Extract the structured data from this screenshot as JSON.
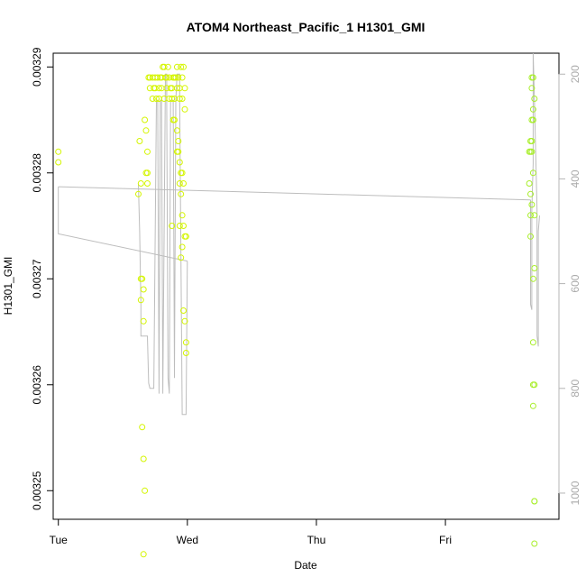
{
  "chart_data": {
    "type": "scatter",
    "title": "ATOM4 Northeast_Pacific_1 H1301_GMI",
    "xlabel": "Date",
    "ylabel": "H1301_GMI",
    "x_ticks": [
      "Tue",
      "Wed",
      "Thu",
      "Fri"
    ],
    "x_unit": "days since Tue 00:00",
    "xlim": [
      -0.04,
      3.88
    ],
    "ylim": [
      0.0032473,
      0.0032913
    ],
    "y_ticks": [
      "0.00325",
      "0.00326",
      "0.00327",
      "0.00328",
      "0.00329"
    ],
    "y_tick_values": [
      0.00325,
      0.00326,
      0.00327,
      0.00328,
      0.00329
    ],
    "y2_label": "",
    "y2_lim": [
      1050,
      160
    ],
    "y2_ticks": [
      "200",
      "400",
      "600",
      "800",
      "1000"
    ],
    "y2_tick_values": [
      200,
      400,
      600,
      800,
      1000
    ],
    "grid": false,
    "colors": {
      "early_points": "#d4f500",
      "late_points": "#a8ee2a",
      "altitude_line": "#bdbdbd",
      "axis": "#000000",
      "right_axis": "#b5b5b5"
    },
    "series": [
      {
        "name": "",
        "color": "#d4f500",
        "points": [
          [
            0.0,
            0.003282
          ],
          [
            0.0,
            0.003281
          ],
          [
            0.63,
            0.003283
          ],
          [
            0.64,
            0.003279
          ],
          [
            0.62,
            0.003278
          ],
          [
            0.64,
            0.00327
          ],
          [
            0.65,
            0.00327
          ],
          [
            0.66,
            0.003269
          ],
          [
            0.64,
            0.003268
          ],
          [
            0.66,
            0.003266
          ],
          [
            0.65,
            0.003256
          ],
          [
            0.66,
            0.003253
          ],
          [
            0.67,
            0.00325
          ],
          [
            0.66,
            0.003244
          ],
          [
            0.67,
            0.003285
          ],
          [
            0.68,
            0.003284
          ],
          [
            0.69,
            0.003282
          ],
          [
            0.68,
            0.00328
          ],
          [
            0.69,
            0.003279
          ],
          [
            0.69,
            0.00328
          ],
          [
            0.7,
            0.003289
          ],
          [
            0.71,
            0.003289
          ],
          [
            0.73,
            0.003289
          ],
          [
            0.74,
            0.003288
          ],
          [
            0.75,
            0.003289
          ],
          [
            0.76,
            0.003287
          ],
          [
            0.77,
            0.003289
          ],
          [
            0.78,
            0.003288
          ],
          [
            0.79,
            0.003289
          ],
          [
            0.8,
            0.003289
          ],
          [
            0.81,
            0.00329
          ],
          [
            0.82,
            0.00329
          ],
          [
            0.83,
            0.003289
          ],
          [
            0.84,
            0.003289
          ],
          [
            0.85,
            0.00329
          ],
          [
            0.86,
            0.003289
          ],
          [
            0.87,
            0.003288
          ],
          [
            0.88,
            0.003288
          ],
          [
            0.89,
            0.003289
          ],
          [
            0.9,
            0.003289
          ],
          [
            0.91,
            0.003289
          ],
          [
            0.92,
            0.00329
          ],
          [
            0.93,
            0.003289
          ],
          [
            0.94,
            0.003288
          ],
          [
            0.95,
            0.00329
          ],
          [
            0.96,
            0.003289
          ],
          [
            0.97,
            0.00329
          ],
          [
            0.98,
            0.003288
          ],
          [
            0.71,
            0.003288
          ],
          [
            0.73,
            0.003287
          ],
          [
            0.75,
            0.003288
          ],
          [
            0.78,
            0.003287
          ],
          [
            0.8,
            0.003288
          ],
          [
            0.82,
            0.003287
          ],
          [
            0.84,
            0.003288
          ],
          [
            0.86,
            0.003287
          ],
          [
            0.88,
            0.003287
          ],
          [
            0.9,
            0.003287
          ],
          [
            0.92,
            0.003288
          ],
          [
            0.94,
            0.003287
          ],
          [
            0.96,
            0.003287
          ],
          [
            0.98,
            0.003286
          ],
          [
            0.89,
            0.003285
          ],
          [
            0.9,
            0.003285
          ],
          [
            0.92,
            0.003284
          ],
          [
            0.93,
            0.003283
          ],
          [
            0.92,
            0.003282
          ],
          [
            0.93,
            0.003282
          ],
          [
            0.94,
            0.003281
          ],
          [
            0.95,
            0.00328
          ],
          [
            0.94,
            0.003279
          ],
          [
            0.96,
            0.00328
          ],
          [
            0.97,
            0.003279
          ],
          [
            0.95,
            0.003278
          ],
          [
            0.88,
            0.003275
          ],
          [
            0.94,
            0.003275
          ],
          [
            0.96,
            0.003276
          ],
          [
            0.97,
            0.003275
          ],
          [
            0.98,
            0.003274
          ],
          [
            0.99,
            0.003274
          ],
          [
            0.96,
            0.003273
          ],
          [
            0.95,
            0.003272
          ],
          [
            0.97,
            0.003267
          ],
          [
            0.98,
            0.003266
          ],
          [
            0.99,
            0.003264
          ],
          [
            0.99,
            0.003263
          ]
        ]
      },
      {
        "name": "",
        "color": "#a8ee2a",
        "points": [
          [
            3.67,
            0.003289
          ],
          [
            3.68,
            0.003289
          ],
          [
            3.67,
            0.003288
          ],
          [
            3.69,
            0.003287
          ],
          [
            3.68,
            0.003286
          ],
          [
            3.67,
            0.003285
          ],
          [
            3.68,
            0.003285
          ],
          [
            3.66,
            0.003283
          ],
          [
            3.67,
            0.003283
          ],
          [
            3.66,
            0.003282
          ],
          [
            3.67,
            0.003282
          ],
          [
            3.65,
            0.003282
          ],
          [
            3.68,
            0.00328
          ],
          [
            3.65,
            0.003279
          ],
          [
            3.66,
            0.003278
          ],
          [
            3.67,
            0.003277
          ],
          [
            3.66,
            0.003276
          ],
          [
            3.69,
            0.003276
          ],
          [
            3.66,
            0.003274
          ],
          [
            3.69,
            0.003271
          ],
          [
            3.68,
            0.00327
          ],
          [
            3.68,
            0.003264
          ],
          [
            3.69,
            0.00326
          ],
          [
            3.68,
            0.00326
          ],
          [
            3.68,
            0.003258
          ],
          [
            3.69,
            0.003249
          ],
          [
            3.69,
            0.003249
          ],
          [
            3.69,
            0.003245
          ]
        ]
      }
    ]
  }
}
